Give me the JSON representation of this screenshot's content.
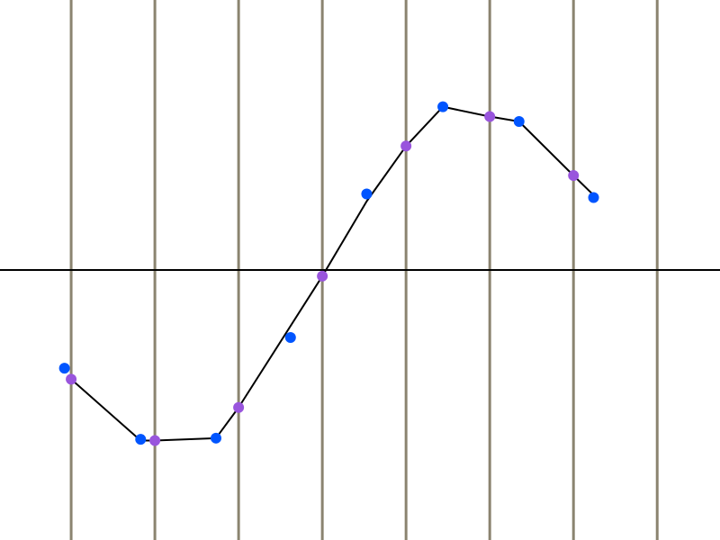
{
  "colors": {
    "background": "#ffffff",
    "gridline": "#8b8470",
    "axis": "#000000",
    "line": "#000000",
    "marker_blue": "#0055ff",
    "marker_purple": "#9955dd"
  },
  "chart_data": {
    "type": "line",
    "title": "",
    "xlabel": "",
    "ylabel": "",
    "grid": {
      "vertical": true,
      "horizontal": false
    },
    "xlim": [
      -0.85,
      7.75
    ],
    "ylim": [
      -2.2,
      2.2
    ],
    "vertical_gridlines_x": [
      0,
      1,
      2,
      3,
      4,
      5,
      6,
      7
    ],
    "zero_line_y": 0,
    "polyline": {
      "x": [
        0,
        0.83,
        1,
        1.73,
        2,
        3,
        3.53,
        4,
        4.44,
        5,
        5.35,
        6,
        6.24
      ],
      "y": [
        -0.89,
        -1.39,
        -1.39,
        -1.37,
        -1.12,
        -0.05,
        0.56,
        1.01,
        1.33,
        1.25,
        1.21,
        0.77,
        0.61
      ]
    },
    "series": [
      {
        "marker_color": "#0055ff",
        "x": [
          -0.08,
          0.83,
          1.73,
          2.62,
          3.53,
          4.44,
          5.35,
          6.24
        ],
        "y": [
          -0.8,
          -1.38,
          -1.37,
          -0.55,
          0.62,
          1.33,
          1.21,
          0.59
        ]
      },
      {
        "marker_color": "#9955dd",
        "x": [
          0,
          1,
          2,
          3,
          4,
          5,
          6
        ],
        "y": [
          -0.89,
          -1.39,
          -1.12,
          -0.05,
          1.01,
          1.25,
          0.77
        ]
      }
    ]
  }
}
